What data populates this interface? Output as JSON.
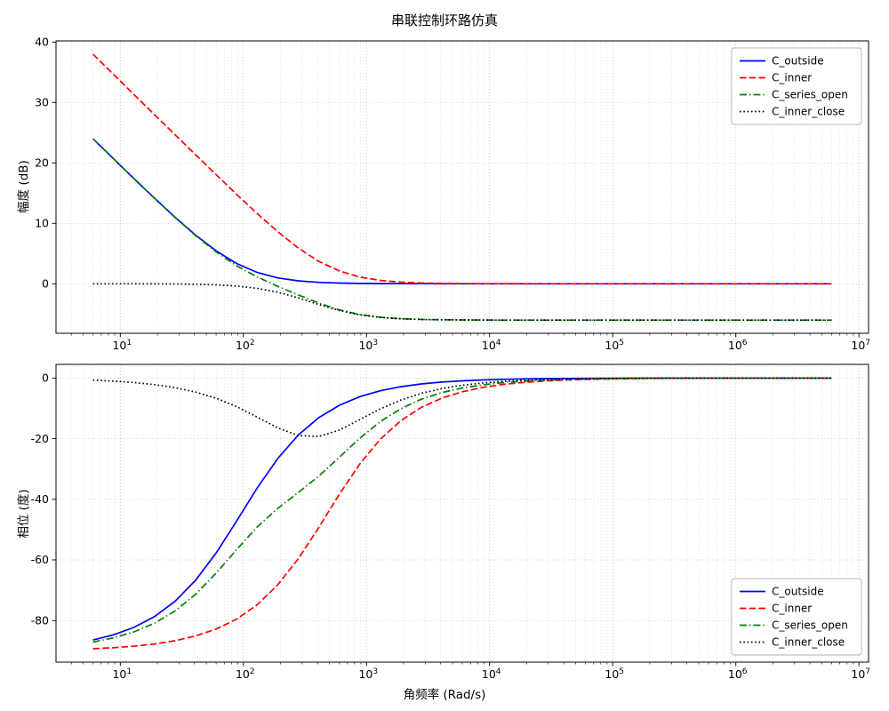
{
  "figure": {
    "title": "串联控制环路仿真",
    "background": "#ffffff"
  },
  "chart_data": [
    {
      "type": "line",
      "id": "magnitude-plot",
      "ylabel": "幅度 (dB)",
      "xscale": "log",
      "xlim_log10": [
        0.478,
        7.078
      ],
      "ylim": [
        -8.2,
        40.2
      ],
      "yticks": [
        0,
        10,
        20,
        30,
        40
      ],
      "xtick_exponents": [
        1,
        2,
        3,
        4,
        5,
        6,
        7
      ],
      "grid": true,
      "legend_position": "upper-right",
      "x": [
        6,
        8.81,
        12.93,
        18.98,
        27.85,
        40.88,
        60,
        88.1,
        129.3,
        189.8,
        278.5,
        408.8,
        600,
        881,
        1293,
        1898,
        2785,
        4088,
        6000,
        8810,
        12930,
        18980,
        27850,
        40880,
        60000,
        88100,
        129300,
        189800,
        278500,
        408800,
        600000,
        881000,
        1293000,
        1898000,
        2785000,
        4088000,
        6000000
      ],
      "series": [
        {
          "name": "C_outside",
          "color": "#0000ff",
          "style": "solid",
          "values": [
            24.01,
            20.69,
            17.4,
            14.16,
            11.01,
            8.06,
            5.45,
            3.35,
            1.87,
            0.97,
            0.48,
            0.23,
            0.11,
            0.05,
            0.02,
            0.01,
            0.01,
            0,
            0,
            0,
            0,
            0,
            0,
            0,
            0,
            0,
            0,
            0,
            0,
            0,
            0,
            0,
            0,
            0,
            0,
            0,
            0
          ]
        },
        {
          "name": "C_inner",
          "color": "#ff0000",
          "style": "dashed",
          "values": [
            37.99,
            34.65,
            31.32,
            27.99,
            24.67,
            21.35,
            18.06,
            14.8,
            11.63,
            8.63,
            5.93,
            3.72,
            2.12,
            1.11,
            0.55,
            0.26,
            0.13,
            0.06,
            0.03,
            0.01,
            0.01,
            0,
            0,
            0,
            0,
            0,
            0,
            0,
            0,
            0,
            0,
            0,
            0,
            0,
            0,
            0,
            0
          ]
        },
        {
          "name": "C_series_open",
          "color": "#008000",
          "style": "dashdot",
          "values": [
            24.01,
            20.69,
            17.39,
            14.14,
            10.97,
            7.97,
            5.27,
            2.97,
            1.12,
            -0.42,
            -1.85,
            -3.2,
            -4.32,
            -5.09,
            -5.55,
            -5.79,
            -5.91,
            -5.97,
            -6,
            -6.01,
            -6.02,
            -6.02,
            -6.02,
            -6.02,
            -6.02,
            -6.02,
            -6.02,
            -6.02,
            -6.02,
            -6.02,
            -6.02,
            -6.02,
            -6.02,
            -6.02,
            -6.02,
            -6.02,
            -6.02
          ]
        },
        {
          "name": "C_inner_close",
          "color": "#000000",
          "style": "dotted",
          "values": [
            0,
            0,
            -0.01,
            -0.02,
            -0.04,
            -0.09,
            -0.18,
            -0.38,
            -0.75,
            -1.39,
            -2.33,
            -3.43,
            -4.43,
            -5.14,
            -5.57,
            -5.8,
            -5.92,
            -5.97,
            -6,
            -6.01,
            -6.02,
            -6.02,
            -6.02,
            -6.02,
            -6.02,
            -6.02,
            -6.02,
            -6.02,
            -6.02,
            -6.02,
            -6.02,
            -6.02,
            -6.02,
            -6.02,
            -6.02,
            -6.02,
            -6.02
          ]
        }
      ]
    },
    {
      "type": "line",
      "id": "phase-plot",
      "ylabel": "相位 (度)",
      "xlabel": "角频率 (Rad/s)",
      "xscale": "log",
      "xlim_log10": [
        0.478,
        7.078
      ],
      "ylim": [
        -93.7,
        4.5
      ],
      "yticks": [
        0,
        -20,
        -40,
        -60,
        -80
      ],
      "xtick_exponents": [
        1,
        2,
        3,
        4,
        5,
        6,
        7
      ],
      "grid": true,
      "legend_position": "lower-right",
      "x": [
        6,
        8.81,
        12.93,
        18.98,
        27.85,
        40.88,
        60,
        88.1,
        129.3,
        189.8,
        278.5,
        408.8,
        600,
        881,
        1293,
        1898,
        2785,
        4088,
        6000,
        8810,
        12930,
        18980,
        27850,
        40880,
        60000,
        88100,
        129300,
        189800,
        278500,
        408800,
        600000,
        881000,
        1293000,
        1898000,
        2785000,
        4088000,
        6000000
      ],
      "series": [
        {
          "name": "C_outside",
          "color": "#0000ff",
          "style": "solid",
          "values": [
            -86.39,
            -84.7,
            -82.25,
            -78.7,
            -73.66,
            -66.71,
            -57.72,
            -47.16,
            -36.29,
            -26.59,
            -18.83,
            -13.09,
            -9,
            -6.15,
            -4.2,
            -2.87,
            -1.95,
            -1.33,
            -0.91,
            -0.62,
            -0.42,
            -0.29,
            -0.2,
            -0.13,
            -0.09,
            -0.06,
            -0.04,
            -0.03,
            -0.02,
            -0.01,
            -0.01,
            -0.01,
            0,
            0,
            0,
            0,
            0
          ]
        },
        {
          "name": "C_inner",
          "color": "#ff0000",
          "style": "dashed",
          "values": [
            -89.28,
            -88.94,
            -88.44,
            -87.72,
            -86.65,
            -85.09,
            -82.81,
            -79.51,
            -74.8,
            -68.26,
            -59.67,
            -49.34,
            -38.43,
            -28.38,
            -20.22,
            -14.08,
            -9.7,
            -6.64,
            -4.54,
            -3.09,
            -2.11,
            -1.44,
            -0.98,
            -0.67,
            -0.45,
            -0.31,
            -0.21,
            -0.14,
            -0.1,
            -0.07,
            -0.05,
            -0.03,
            -0.02,
            -0.02,
            -0.01,
            -0.01,
            0
          ]
        },
        {
          "name": "C_series_open",
          "color": "#008000",
          "style": "dashdot",
          "values": [
            -87.08,
            -85.71,
            -83.73,
            -80.87,
            -76.83,
            -71.32,
            -64.37,
            -56.58,
            -49.14,
            -43.01,
            -37.79,
            -32.37,
            -26.19,
            -19.89,
            -14.39,
            -10.13,
            -7,
            -4.8,
            -3.29,
            -2.24,
            -1.52,
            -1.04,
            -0.71,
            -0.48,
            -0.33,
            -0.22,
            -0.15,
            -0.11,
            -0.07,
            -0.05,
            -0.03,
            -0.02,
            -0.02,
            -0.01,
            -0.01,
            0,
            0
          ]
        },
        {
          "name": "C_inner_close",
          "color": "#000000",
          "style": "dotted",
          "values": [
            -0.69,
            -1.01,
            -1.48,
            -2.17,
            -3.17,
            -4.61,
            -6.65,
            -9.42,
            -12.85,
            -16.42,
            -18.96,
            -19.28,
            -17.19,
            -13.74,
            -10.19,
            -7.26,
            -5.05,
            -3.47,
            -2.38,
            -1.62,
            -1.1,
            -0.75,
            -0.51,
            -0.35,
            -0.24,
            -0.16,
            -0.11,
            -0.08,
            -0.05,
            -0.04,
            -0.02,
            -0.02,
            -0.01,
            -0.01,
            -0.01,
            0,
            0
          ]
        }
      ]
    }
  ]
}
